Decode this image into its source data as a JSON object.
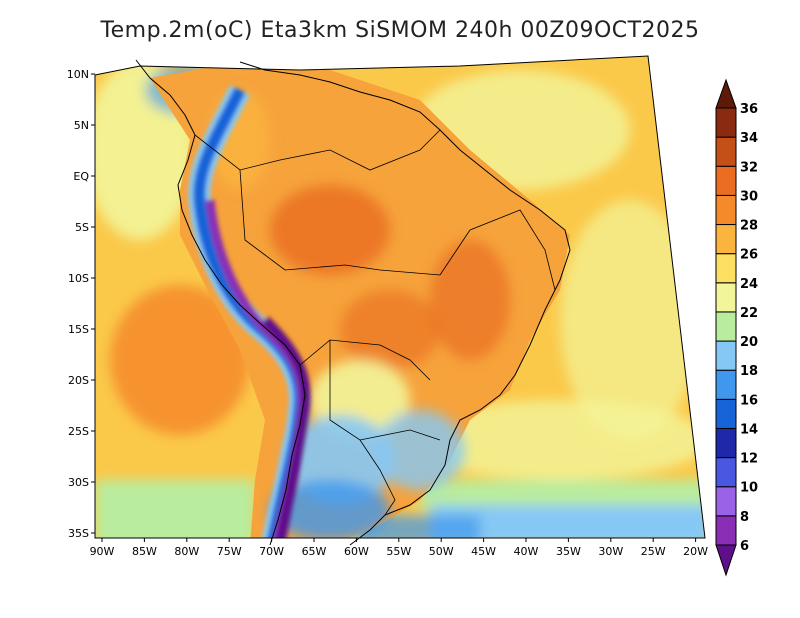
{
  "title": "Temp.2m(oC) Eta3km SiSMOM 240h 00Z09OCT2025",
  "map": {
    "lon_labels": [
      "90W",
      "85W",
      "80W",
      "75W",
      "70W",
      "65W",
      "60W",
      "55W",
      "50W",
      "45W",
      "40W",
      "35W",
      "30W",
      "25W",
      "20W"
    ],
    "lat_labels": [
      "10N",
      "5N",
      "EQ",
      "5S",
      "10S",
      "15S",
      "20S",
      "25S",
      "30S",
      "35S"
    ]
  },
  "colorbar": {
    "unit": "oC",
    "levels": [
      6,
      8,
      10,
      12,
      14,
      16,
      18,
      20,
      22,
      24,
      26,
      28,
      30,
      32,
      34,
      36
    ],
    "colors": [
      "#5e0f8a",
      "#8a2fb5",
      "#9a62e6",
      "#4a57e0",
      "#1e28a8",
      "#1763d8",
      "#3f97ee",
      "#86c8f5",
      "#b9ec9e",
      "#f2f59a",
      "#fde062",
      "#fbb43e",
      "#f48a2a",
      "#ea6d22",
      "#c45018",
      "#8a2a10",
      "#5e1a08"
    ]
  },
  "colors": {
    "ocean_base": "#fbc94a",
    "land_base": "#f6a33c",
    "coast_line": "#000000",
    "border_line": "#000000"
  }
}
